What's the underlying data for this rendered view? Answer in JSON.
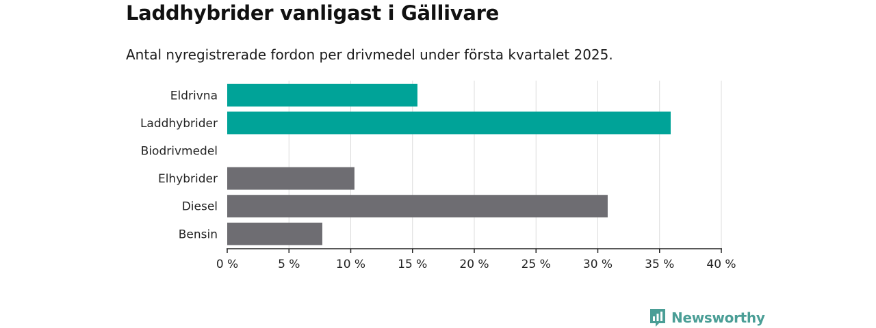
{
  "header": {
    "title": "Laddhybrider vanligast i Gällivare",
    "subtitle": "Antal nyregistrerade fordon per drivmedel under första kvartalet 2025."
  },
  "brand": {
    "name": "Newsworthy",
    "icon": "newsworthy-logo-icon"
  },
  "colors": {
    "highlight": "#00a398",
    "default": "#6e6d72",
    "grid": "#dcdcdc",
    "axis": "#222222"
  },
  "chart_data": {
    "type": "bar",
    "orientation": "horizontal",
    "categories": [
      "Eldrivna",
      "Laddhybrider",
      "Biodrivmedel",
      "Elhybrider",
      "Diesel",
      "Bensin"
    ],
    "values": [
      15.4,
      35.9,
      0,
      10.3,
      30.8,
      7.7
    ],
    "highlighted": [
      "Eldrivna",
      "Laddhybrider"
    ],
    "xlim": [
      0,
      40
    ],
    "xticks": [
      0,
      5,
      10,
      15,
      20,
      25,
      30,
      35,
      40
    ],
    "tick_suffix": " %",
    "grid": true
  }
}
